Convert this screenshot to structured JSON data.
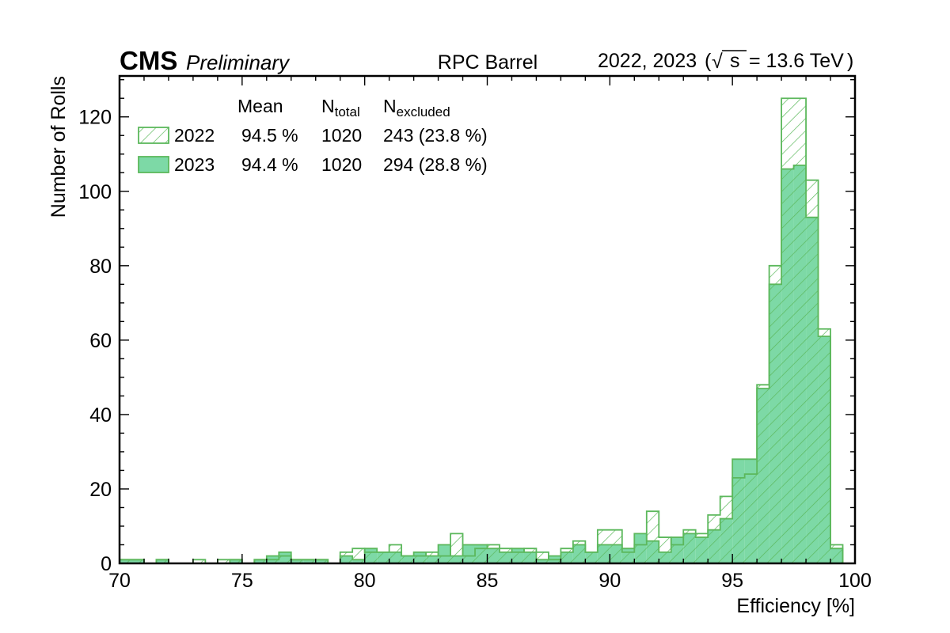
{
  "chart_data": {
    "type": "histogram",
    "experiment": "CMS",
    "status": "Preliminary",
    "region": "RPC Barrel",
    "energy_label": {
      "years": "2022, 2023",
      "sqrt": "√",
      "s": "s",
      "value": "= 13.6 TeV"
    },
    "xlabel": "Efficiency [%]",
    "ylabel": "Number of Rolls",
    "xlim": [
      70,
      100
    ],
    "ylim": [
      0,
      131
    ],
    "x_ticks": [
      70,
      75,
      80,
      85,
      90,
      95,
      100
    ],
    "y_ticks": [
      0,
      20,
      40,
      60,
      80,
      100,
      120
    ],
    "bin_width": 0.5,
    "bin_start": 70,
    "legend": {
      "headers": {
        "mean": "Mean",
        "ntotal_main": "N",
        "ntotal_sub": "total",
        "nexcl_main": "N",
        "nexcl_sub": "excluded"
      },
      "rows": [
        {
          "year": "2022",
          "mean": "94.5 %",
          "ntotal": "1020",
          "nexcluded": "243 (23.8 %)",
          "style": "hatched"
        },
        {
          "year": "2023",
          "mean": "94.4 %",
          "ntotal": "1020",
          "nexcluded": "294 (28.8 %)",
          "style": "filled"
        }
      ]
    },
    "series": [
      {
        "name": "2022",
        "style": "hatched",
        "values": [
          1,
          1,
          0,
          1,
          0,
          0,
          1,
          0,
          1,
          1,
          0,
          1,
          1,
          2,
          1,
          1,
          1,
          0,
          3,
          4,
          3,
          3,
          5,
          2,
          2,
          3,
          2,
          8,
          2,
          4,
          5,
          4,
          3,
          4,
          3,
          1,
          4,
          6,
          3,
          9,
          9,
          3,
          5,
          14,
          7,
          5,
          9,
          8,
          13,
          18,
          23,
          24,
          48,
          80,
          125,
          125,
          103,
          63,
          5,
          0
        ]
      },
      {
        "name": "2023",
        "style": "filled",
        "values": [
          1,
          1,
          0,
          1,
          0,
          0,
          0,
          0,
          0,
          1,
          0,
          1,
          2,
          3,
          1,
          1,
          1,
          0,
          2,
          1,
          4,
          3,
          3,
          2,
          3,
          2,
          5,
          2,
          5,
          5,
          4,
          3,
          4,
          3,
          1,
          2,
          3,
          5,
          3,
          5,
          5,
          4,
          8,
          6,
          3,
          7,
          8,
          7,
          9,
          12,
          28,
          28,
          47,
          75,
          106,
          107,
          93,
          61,
          4,
          0
        ]
      }
    ],
    "colors": {
      "fill_2023": "#7dd9a6",
      "edge": "#5cb85c",
      "hatch": "#5cb85c",
      "axis": "#000000"
    }
  }
}
